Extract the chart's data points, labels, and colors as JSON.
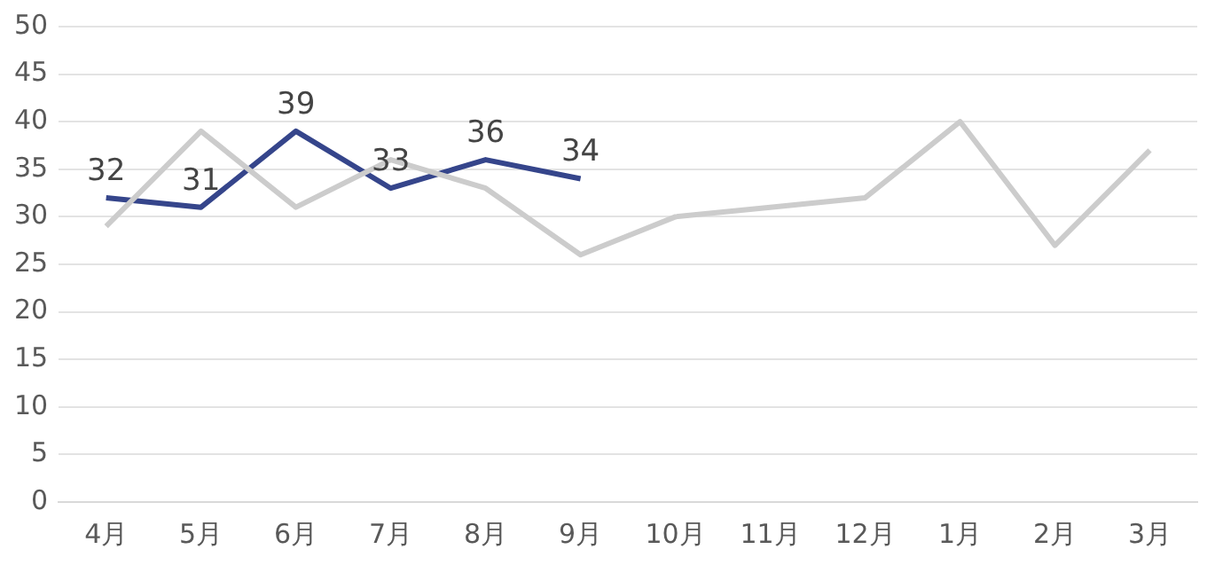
{
  "chart_data": {
    "type": "line",
    "categories": [
      "4月",
      "5月",
      "6月",
      "7月",
      "8月",
      "9月",
      "10月",
      "11月",
      "12月",
      "1月",
      "2月",
      "3月"
    ],
    "series": [
      {
        "color": "#cccccc",
        "values": [
          29,
          39,
          31,
          36,
          33,
          26,
          30,
          31,
          32,
          40,
          27,
          37
        ]
      },
      {
        "color": "#35458b",
        "values": [
          32,
          31,
          39,
          33,
          36,
          34,
          null,
          null,
          null,
          null,
          null,
          null
        ],
        "value_labels": [
          "32",
          "31",
          "39",
          "33",
          "36",
          "34",
          null,
          null,
          null,
          null,
          null,
          null
        ]
      }
    ],
    "ylim": [
      0,
      50
    ],
    "yticks": [
      0,
      5,
      10,
      15,
      20,
      25,
      30,
      35,
      40,
      45,
      50
    ],
    "grid": "y",
    "legend": false,
    "marker": "none"
  }
}
